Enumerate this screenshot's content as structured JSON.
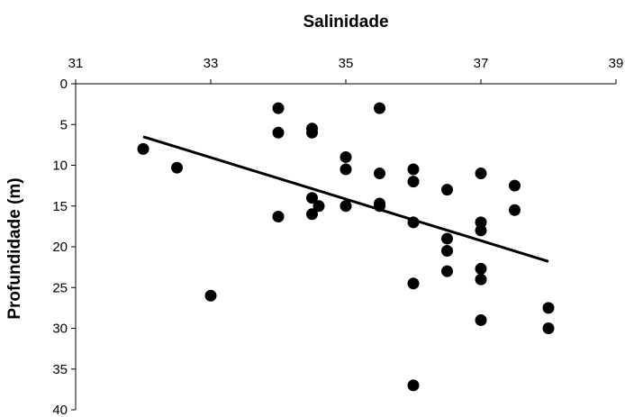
{
  "chart_data": {
    "type": "scatter",
    "xlabel": "Salinidade",
    "ylabel": "Profundidade (m)",
    "x_axis_position": "top",
    "y_axis_inverted": true,
    "xlim": [
      31,
      39
    ],
    "ylim": [
      0,
      40
    ],
    "x_ticks": [
      31,
      33,
      35,
      37,
      39
    ],
    "y_ticks": [
      0,
      5,
      10,
      15,
      20,
      25,
      30,
      35,
      40
    ],
    "grid": false,
    "series": [
      {
        "points": [
          [
            32.0,
            8.0
          ],
          [
            32.5,
            10.3
          ],
          [
            33.0,
            26.0
          ],
          [
            34.0,
            3.0
          ],
          [
            34.0,
            6.0
          ],
          [
            34.0,
            16.3
          ],
          [
            34.5,
            5.5
          ],
          [
            34.5,
            6.0
          ],
          [
            34.5,
            14.0
          ],
          [
            34.5,
            16.0
          ],
          [
            34.6,
            15.0
          ],
          [
            35.0,
            9.0
          ],
          [
            35.0,
            10.5
          ],
          [
            35.0,
            15.0
          ],
          [
            35.5,
            3.0
          ],
          [
            35.5,
            11.0
          ],
          [
            35.5,
            14.7
          ],
          [
            35.5,
            15.0
          ],
          [
            36.0,
            10.5
          ],
          [
            36.0,
            12.0
          ],
          [
            36.0,
            17.0
          ],
          [
            36.0,
            24.5
          ],
          [
            36.0,
            37.0
          ],
          [
            36.5,
            13.0
          ],
          [
            36.5,
            19.0
          ],
          [
            36.5,
            20.5
          ],
          [
            36.5,
            23.0
          ],
          [
            37.0,
            11.0
          ],
          [
            37.0,
            17.0
          ],
          [
            37.0,
            18.0
          ],
          [
            37.0,
            22.7
          ],
          [
            37.0,
            24.0
          ],
          [
            37.0,
            29.0
          ],
          [
            37.5,
            12.5
          ],
          [
            37.5,
            15.5
          ],
          [
            38.0,
            27.5
          ],
          [
            38.0,
            30.0
          ]
        ]
      }
    ],
    "trendline": {
      "from": [
        32.0,
        6.5
      ],
      "to": [
        38.0,
        21.8
      ]
    }
  }
}
